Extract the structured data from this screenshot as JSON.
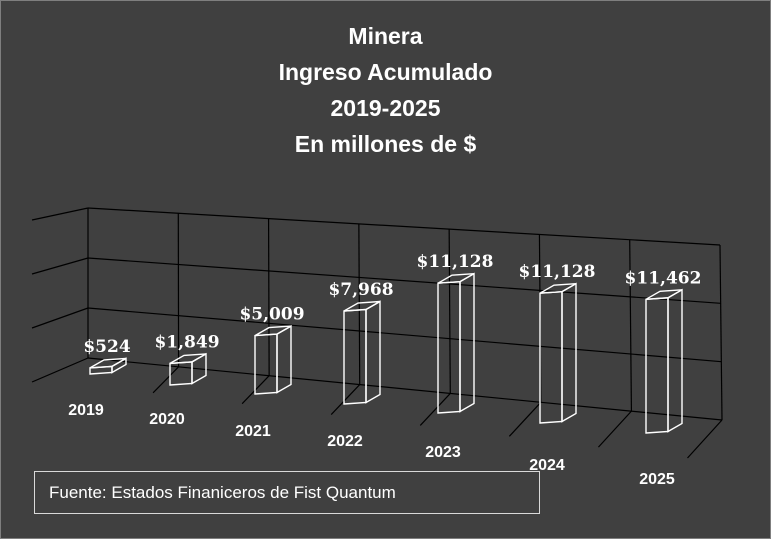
{
  "chart_data": {
    "type": "bar",
    "title_lines": [
      "Minera",
      "Ingreso Acumulado",
      "2019-2025",
      "En millones de $"
    ],
    "categories": [
      "2019",
      "2020",
      "2021",
      "2022",
      "2023",
      "2024",
      "2025"
    ],
    "values": [
      524,
      1849,
      5009,
      7968,
      11128,
      11128,
      11462
    ],
    "value_labels": [
      "$524",
      "$1,849",
      "$5,009",
      "$7,968",
      "$11,128",
      "$11,128",
      "$11,462"
    ],
    "grid": true,
    "bar_style": "3d-outline",
    "colors": {
      "background": "#404040",
      "bar_outline": "#ffffff",
      "grid": "#000000",
      "text": "#ffffff"
    }
  },
  "source_note": "Fuente: Estados Finaniceros de Fist Quantum"
}
